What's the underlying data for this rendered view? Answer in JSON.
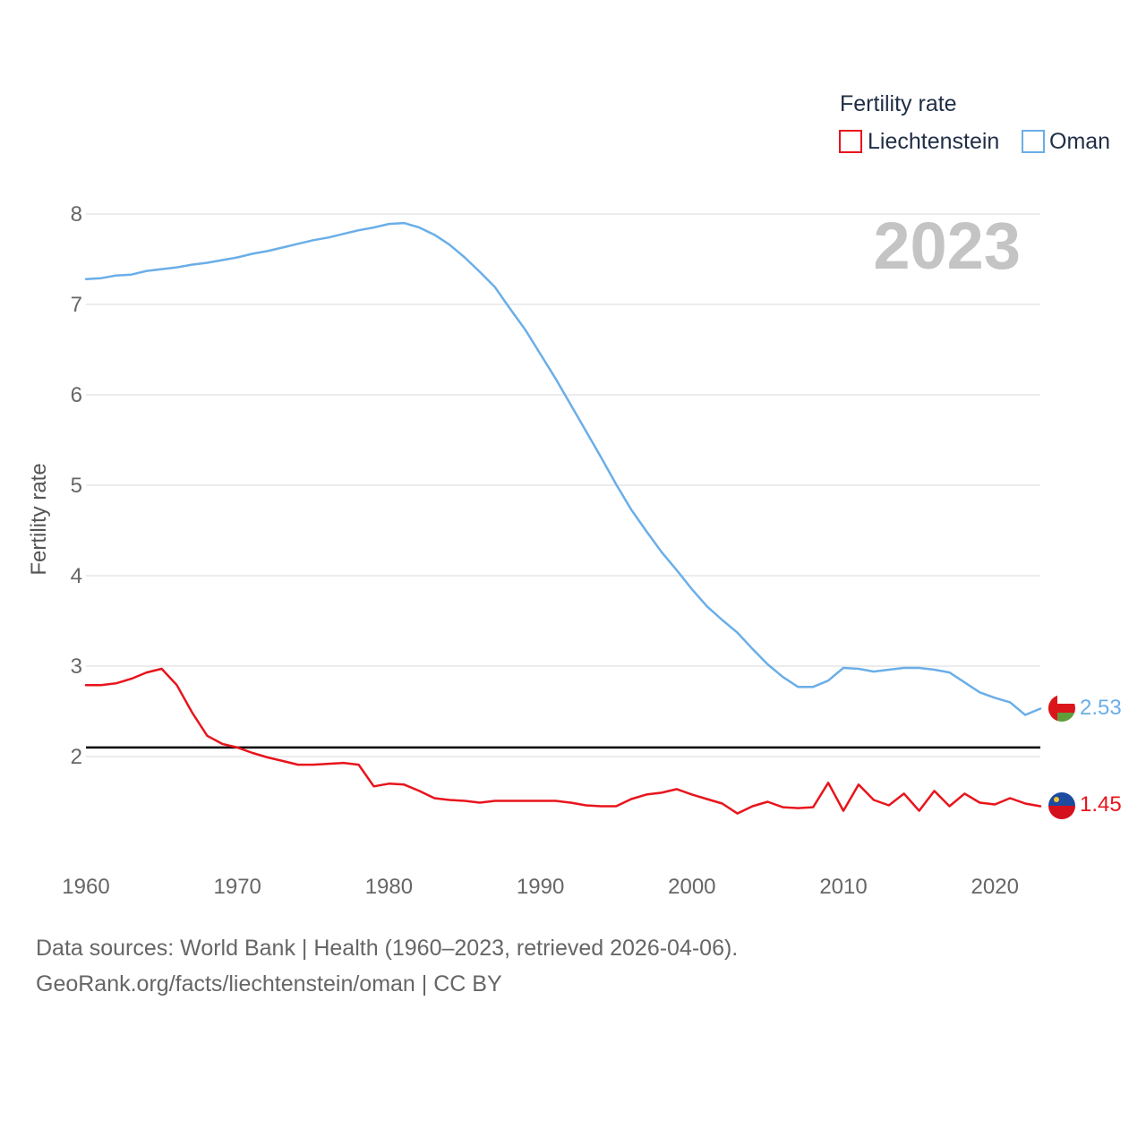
{
  "chart_data": {
    "type": "line",
    "title": "Fertility rate",
    "ylabel": "Fertility rate",
    "xlabel": "",
    "year_display": "2023",
    "xlim": [
      1960,
      2023
    ],
    "ylim": [
      1.0,
      8.3
    ],
    "x_ticks": [
      "1960",
      "1970",
      "1980",
      "1990",
      "2000",
      "2010",
      "2020"
    ],
    "y_ticks": [
      "2",
      "3",
      "4",
      "5",
      "6",
      "7",
      "8"
    ],
    "reference_line": 2.1,
    "legend_position": "top-right",
    "x": [
      1960,
      1961,
      1962,
      1963,
      1964,
      1965,
      1966,
      1967,
      1968,
      1969,
      1970,
      1971,
      1972,
      1973,
      1974,
      1975,
      1976,
      1977,
      1978,
      1979,
      1980,
      1981,
      1982,
      1983,
      1984,
      1985,
      1986,
      1987,
      1988,
      1989,
      1990,
      1991,
      1992,
      1993,
      1994,
      1995,
      1996,
      1997,
      1998,
      1999,
      2000,
      2001,
      2002,
      2003,
      2004,
      2005,
      2006,
      2007,
      2008,
      2009,
      2010,
      2011,
      2012,
      2013,
      2014,
      2015,
      2016,
      2017,
      2018,
      2019,
      2020,
      2021,
      2022,
      2023
    ],
    "series": [
      {
        "name": "Liechtenstein",
        "color": "#e8141c",
        "end_label": "1.45",
        "values": [
          2.79,
          2.79,
          2.81,
          2.86,
          2.93,
          2.97,
          2.79,
          2.49,
          2.23,
          2.14,
          2.1,
          2.04,
          1.99,
          1.95,
          1.91,
          1.91,
          1.92,
          1.93,
          1.91,
          1.67,
          1.7,
          1.69,
          1.62,
          1.54,
          1.52,
          1.51,
          1.49,
          1.51,
          1.51,
          1.51,
          1.51,
          1.51,
          1.49,
          1.46,
          1.45,
          1.45,
          1.53,
          1.58,
          1.6,
          1.64,
          1.58,
          1.53,
          1.48,
          1.37,
          1.45,
          1.5,
          1.44,
          1.43,
          1.44,
          1.71,
          1.4,
          1.69,
          1.52,
          1.46,
          1.59,
          1.4,
          1.62,
          1.45,
          1.59,
          1.49,
          1.47,
          1.54,
          1.48,
          1.45
        ]
      },
      {
        "name": "Oman",
        "color": "#6aaee8",
        "end_label": "2.53",
        "values": [
          7.28,
          7.29,
          7.32,
          7.33,
          7.37,
          7.39,
          7.41,
          7.44,
          7.46,
          7.49,
          7.52,
          7.56,
          7.59,
          7.63,
          7.67,
          7.71,
          7.74,
          7.78,
          7.82,
          7.85,
          7.89,
          7.9,
          7.85,
          7.77,
          7.66,
          7.52,
          7.36,
          7.19,
          6.95,
          6.72,
          6.45,
          6.18,
          5.89,
          5.6,
          5.31,
          5.01,
          4.73,
          4.49,
          4.26,
          4.06,
          3.85,
          3.66,
          3.51,
          3.37,
          3.19,
          3.02,
          2.88,
          2.77,
          2.77,
          2.84,
          2.98,
          2.97,
          2.94,
          2.96,
          2.98,
          2.98,
          2.96,
          2.93,
          2.82,
          2.71,
          2.65,
          2.6,
          2.46,
          2.53
        ]
      }
    ]
  },
  "footer": {
    "line1": "Data sources: World Bank | Health (1960–2023, retrieved 2026-04-06).",
    "line2": "GeoRank.org/facts/liechtenstein/oman | CC BY"
  }
}
